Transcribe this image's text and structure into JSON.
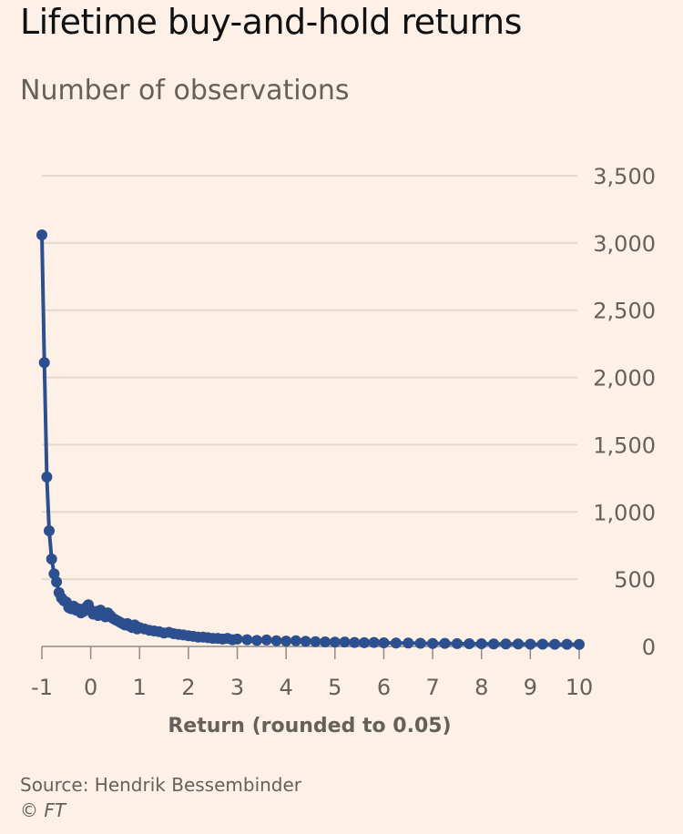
{
  "chart_data": {
    "type": "line",
    "title": "Lifetime buy-and-hold returns",
    "subtitle": "Number of observations",
    "xlabel": "Return (rounded to 0.05)",
    "ylabel": "Number of observations",
    "xlim": [
      -1,
      10
    ],
    "ylim": [
      0,
      3500
    ],
    "x_ticks": [
      "-1",
      "0",
      "1",
      "2",
      "3",
      "4",
      "5",
      "6",
      "7",
      "8",
      "9",
      "10"
    ],
    "y_ticks": [
      "0",
      "500",
      "1,000",
      "1,500",
      "2,000",
      "2,500",
      "3,000",
      "3,500"
    ],
    "grid": true,
    "series": [
      {
        "name": "Observations",
        "color": "#2B4F8F",
        "x": [
          -1.0,
          -0.95,
          -0.9,
          -0.85,
          -0.8,
          -0.75,
          -0.7,
          -0.65,
          -0.6,
          -0.55,
          -0.5,
          -0.45,
          -0.4,
          -0.35,
          -0.3,
          -0.25,
          -0.2,
          -0.15,
          -0.1,
          -0.05,
          0.0,
          0.05,
          0.1,
          0.15,
          0.2,
          0.25,
          0.3,
          0.35,
          0.4,
          0.45,
          0.5,
          0.55,
          0.6,
          0.65,
          0.7,
          0.75,
          0.8,
          0.85,
          0.9,
          0.95,
          1.0,
          1.1,
          1.2,
          1.3,
          1.4,
          1.5,
          1.6,
          1.7,
          1.8,
          1.9,
          2.0,
          2.1,
          2.2,
          2.3,
          2.4,
          2.5,
          2.6,
          2.7,
          2.8,
          2.9,
          3.0,
          3.2,
          3.4,
          3.6,
          3.8,
          4.0,
          4.2,
          4.4,
          4.6,
          4.8,
          5.0,
          5.2,
          5.4,
          5.6,
          5.8,
          6.0,
          6.25,
          6.5,
          6.75,
          7.0,
          7.25,
          7.5,
          7.75,
          8.0,
          8.25,
          8.5,
          8.75,
          9.0,
          9.25,
          9.5,
          9.75,
          10.0
        ],
        "values": [
          3060,
          2110,
          1260,
          860,
          650,
          540,
          480,
          400,
          360,
          340,
          330,
          290,
          280,
          300,
          270,
          280,
          250,
          260,
          290,
          310,
          270,
          240,
          260,
          230,
          270,
          240,
          220,
          250,
          230,
          210,
          200,
          190,
          180,
          170,
          160,
          170,
          150,
          140,
          160,
          130,
          140,
          130,
          120,
          115,
          110,
          100,
          105,
          95,
          90,
          85,
          80,
          75,
          70,
          70,
          65,
          60,
          60,
          55,
          60,
          50,
          55,
          50,
          45,
          48,
          42,
          40,
          42,
          38,
          36,
          34,
          32,
          33,
          30,
          28,
          30,
          27,
          26,
          25,
          24,
          22,
          23,
          21,
          20,
          20,
          19,
          18,
          18,
          17,
          17,
          16,
          16,
          15
        ]
      }
    ]
  },
  "footer": {
    "source": "Source: Hendrik Bessembinder",
    "copyright_symbol": "©",
    "copyright_brand": "FT"
  }
}
